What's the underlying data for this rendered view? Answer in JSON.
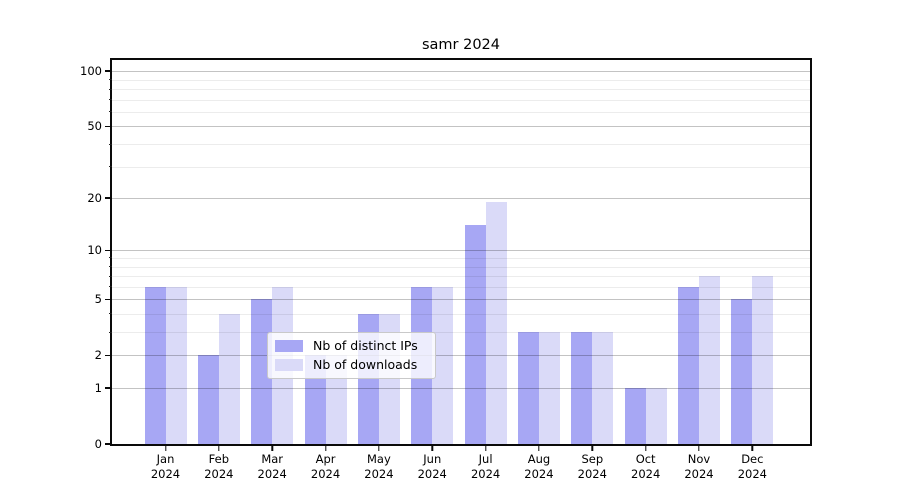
{
  "chart_data": {
    "type": "bar",
    "title": "samr 2024",
    "categories": [
      "Jan 2024",
      "Feb 2024",
      "Mar 2024",
      "Apr 2024",
      "May 2024",
      "Jun 2024",
      "Jul 2024",
      "Aug 2024",
      "Sep 2024",
      "Oct 2024",
      "Nov 2024",
      "Dec 2024"
    ],
    "series": [
      {
        "name": "Nb of distinct IPs",
        "color": "#a7a7f4",
        "values": [
          6,
          2,
          5,
          2,
          4,
          6,
          14,
          3,
          3,
          1,
          6,
          5
        ]
      },
      {
        "name": "Nb of downloads",
        "color": "#dadaf8",
        "values": [
          6,
          4,
          6,
          2,
          4,
          6,
          19,
          3,
          3,
          1,
          7,
          7
        ]
      }
    ],
    "xlabel": "",
    "ylabel": "",
    "yscale": "log1p",
    "ylim": [
      0,
      115
    ],
    "yticks": [
      0,
      1,
      2,
      5,
      10,
      20,
      50,
      100
    ],
    "minor_yticks": [
      3,
      4,
      6,
      7,
      8,
      9,
      30,
      40,
      60,
      70,
      80,
      90
    ],
    "grid": "on",
    "legend_position": "lower center",
    "colors": {
      "background": "#ffffff",
      "spine": "#0a0a0a",
      "major_grid": "#c3c3c3",
      "minor_grid": "#ececec",
      "legend_border": "#c9c9c9"
    }
  }
}
